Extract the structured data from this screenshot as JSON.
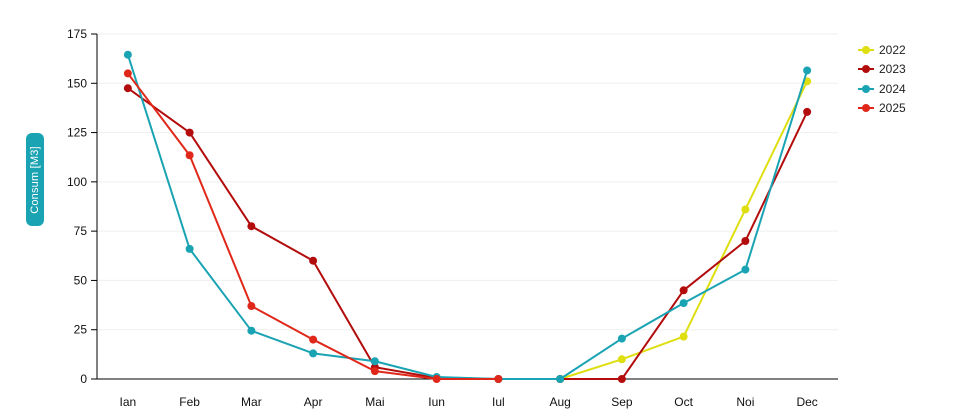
{
  "chart_data": {
    "type": "line",
    "categories": [
      "Ian",
      "Feb",
      "Mar",
      "Apr",
      "Mai",
      "Iun",
      "Iul",
      "Aug",
      "Sep",
      "Oct",
      "Noi",
      "Dec"
    ],
    "ylabel": "Consum [M3]",
    "xlabel": "",
    "title": "",
    "ylim": [
      0,
      175
    ],
    "yticks": [
      0,
      25,
      50,
      75,
      100,
      125,
      150,
      175
    ],
    "grid": true,
    "legend_position": "top-right",
    "series": [
      {
        "name": "2022",
        "color": "#dede10",
        "values": [
          null,
          null,
          null,
          null,
          null,
          null,
          null,
          0,
          10,
          21.5,
          86,
          151
        ]
      },
      {
        "name": "2023",
        "color": "#b30c0c",
        "values": [
          147.5,
          125,
          77.5,
          60,
          6,
          0.5,
          0,
          0,
          0,
          45,
          70,
          135.5
        ]
      },
      {
        "name": "2024",
        "color": "#1aa3b3",
        "values": [
          164.5,
          66,
          24.5,
          13,
          9,
          1,
          0,
          0,
          20.5,
          38.5,
          55.5,
          156.5
        ]
      },
      {
        "name": "2025",
        "color": "#e0281a",
        "values": [
          155,
          113.5,
          37,
          20,
          4,
          0,
          0,
          null,
          null,
          null,
          null,
          null
        ]
      }
    ]
  }
}
